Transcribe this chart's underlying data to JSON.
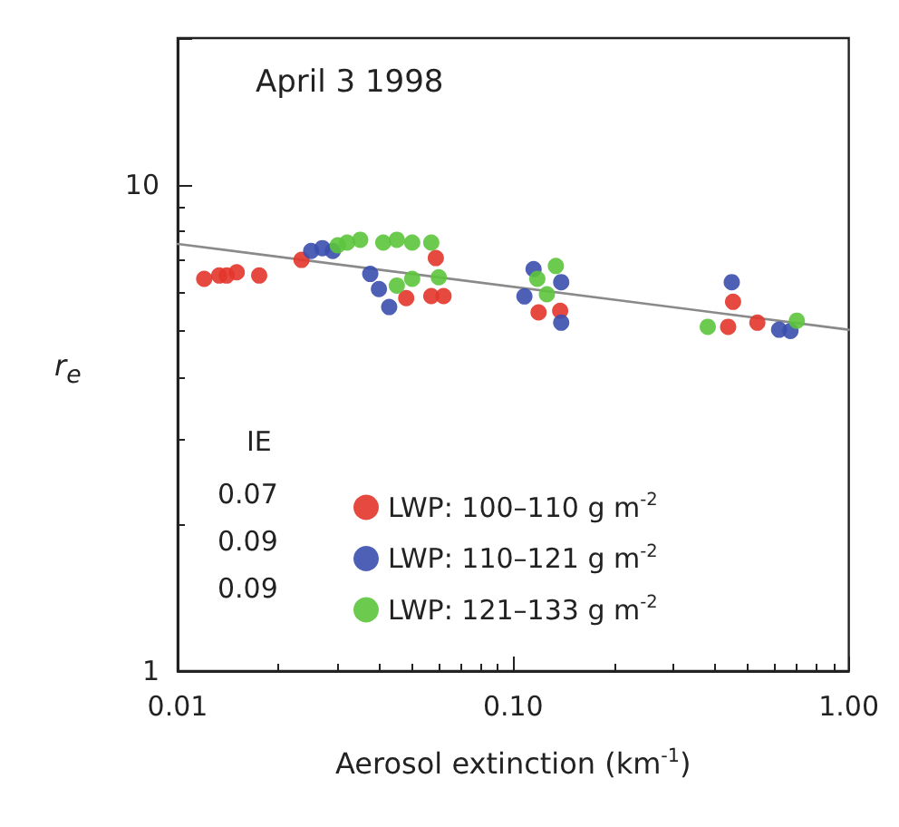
{
  "chart_data": {
    "type": "scatter",
    "title": "April 3 1998",
    "xlabel": "Aerosol extinction (km$^{-1}$)",
    "ylabel": "r$_{e}$",
    "legend_title": "IE",
    "log": "xy",
    "grid": false,
    "legend": "bottom left",
    "marker": "circle",
    "xlim": [
      0.01,
      1
    ],
    "xticks": [
      0.01,
      {
        "value": 0.1,
        "label": "0.10"
      },
      {
        "value": 1,
        "label": "1.00"
      }
    ],
    "ylim": [
      1,
      20
    ],
    "yticks": [
      1,
      10
    ],
    "annotations": [
      "0.07",
      "0.09",
      "0.09"
    ],
    "series": [
      {
        "name": "LWP: 100–110 g m$^{-2}$",
        "color": "#e3352b",
        "x": [
          0.012,
          0.0133,
          0.014,
          0.015,
          0.0175,
          0.0234,
          0.0588,
          0.048,
          0.057,
          0.062,
          0.119,
          0.138,
          0.452,
          0.437,
          0.534
        ],
        "values": [
          6.4,
          6.5,
          6.5,
          6.6,
          6.5,
          7.0,
          7.06,
          5.84,
          5.9,
          5.9,
          5.46,
          5.5,
          5.74,
          5.1,
          5.2
        ]
      },
      {
        "name": "LWP: 110–121 g m$^{-2}$",
        "color": "#3a4fae",
        "x": [
          0.025,
          0.027,
          0.029,
          0.0375,
          0.0427,
          0.0398,
          0.108,
          0.115,
          0.139,
          0.139,
          0.448,
          0.62,
          0.67
        ],
        "values": [
          7.3,
          7.4,
          7.3,
          6.55,
          5.6,
          6.1,
          5.89,
          6.7,
          5.2,
          6.3,
          6.3,
          5.03,
          5.0
        ]
      },
      {
        "name": "LWP: 121–133 g m$^{-2}$",
        "color": "#5cc43c",
        "x": [
          0.03,
          0.032,
          0.035,
          0.041,
          0.045,
          0.05,
          0.057,
          0.06,
          0.045,
          0.05,
          0.118,
          0.134,
          0.126,
          0.38,
          0.7
        ],
        "values": [
          7.5,
          7.6,
          7.7,
          7.6,
          7.7,
          7.6,
          7.6,
          6.45,
          6.2,
          6.4,
          6.4,
          6.8,
          5.95,
          5.1,
          5.25
        ]
      },
      {
        "type": "line",
        "color": "#8a8a8a",
        "x": [
          0.01,
          1
        ],
        "values": [
          7.55,
          5.03
        ],
        "marker": "none"
      }
    ]
  }
}
